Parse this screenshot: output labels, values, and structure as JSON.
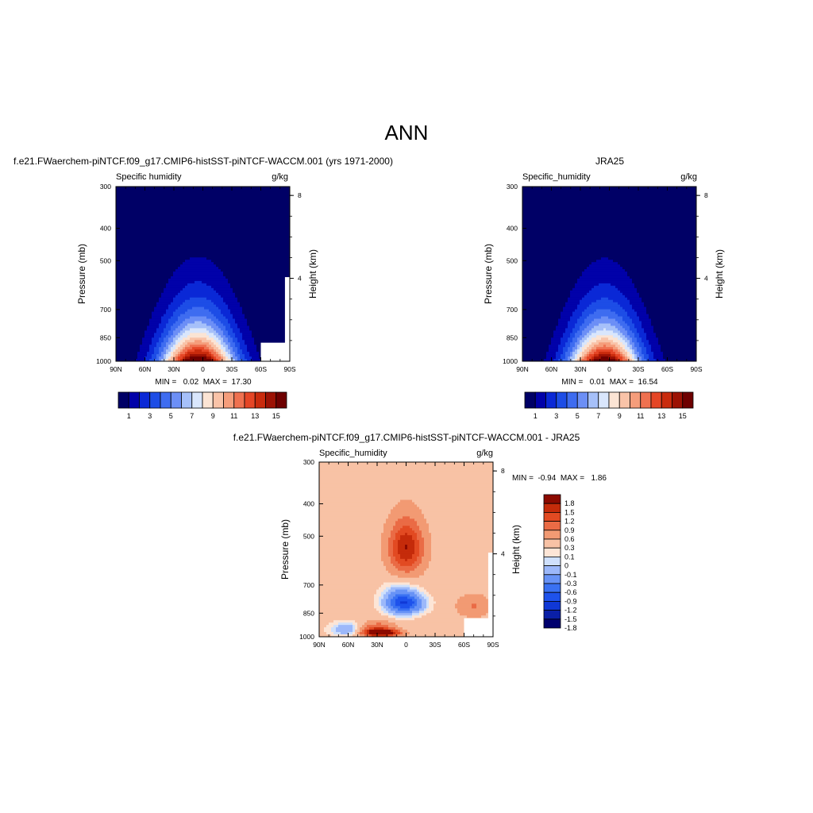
{
  "page_title": "ANN",
  "colors": {
    "abs": [
      "#000066",
      "#0101a9",
      "#0a28d6",
      "#1d4de6",
      "#3e6cf0",
      "#6c8ff6",
      "#a6c0f9",
      "#d9e6fc",
      "#fbe4d4",
      "#f9c3a8",
      "#f59d7b",
      "#ef7150",
      "#e54626",
      "#c92b0d",
      "#9c1204",
      "#6e0000"
    ],
    "diff": [
      "#00006e",
      "#0a1fa6",
      "#1038d6",
      "#1e52ec",
      "#3a71f2",
      "#6893f6",
      "#9cb8fa",
      "#cfe0fc",
      "#fde5d6",
      "#f8c2a5",
      "#f29a73",
      "#ea6b45",
      "#e24a22",
      "#c52b0a",
      "#8c0a00"
    ],
    "diff_default": "#fde5d6"
  },
  "chart_data": [
    {
      "id": "test",
      "type": "heatmap",
      "subplot_title": "f.e21.FWaerchem-piNTCF.f09_g17.CMIP6-histSST-piNTCF-WACCM.001 (yrs 1971-2000)",
      "variable_label": "Specific humidity",
      "units": "g/kg",
      "xlabel": "",
      "ylabel": "Pressure (mb)",
      "ylabel_right": "Height (km)",
      "x_ticks": [
        "90N",
        "60N",
        "30N",
        "0",
        "30S",
        "60S",
        "90S"
      ],
      "x_values": [
        90,
        60,
        30,
        0,
        -30,
        -60,
        -90
      ],
      "y_ticks": [
        "300",
        "400",
        "500",
        "700",
        "850",
        "1000"
      ],
      "y_values": [
        300,
        400,
        500,
        700,
        850,
        1000
      ],
      "height_ticks": [
        "8",
        "4"
      ],
      "height_values": [
        8,
        4
      ],
      "ylim": [
        300,
        1000
      ],
      "xlim": [
        90,
        -90
      ],
      "stats": "MIN =   0.02  MAX =  17.30",
      "min": 0.02,
      "max": 17.3,
      "peak": 17.3,
      "peak_lat": 5,
      "sigma_lat": 26,
      "contour_levels": [
        1,
        2,
        3,
        4,
        5,
        6,
        7,
        8,
        9,
        10,
        11,
        12,
        13,
        14,
        15
      ],
      "colorbar": {
        "orientation": "horizontal",
        "labels": [
          "1",
          "3",
          "5",
          "7",
          "9",
          "11",
          "13",
          "15"
        ]
      }
    },
    {
      "id": "ref",
      "type": "heatmap",
      "subplot_title": "JRA25",
      "variable_label": "Specific_humidity",
      "units": "g/kg",
      "xlabel": "",
      "ylabel": "Pressure (mb)",
      "ylabel_right": "Height (km)",
      "x_ticks": [
        "90N",
        "60N",
        "30N",
        "0",
        "30S",
        "60S",
        "90S"
      ],
      "x_values": [
        90,
        60,
        30,
        0,
        -30,
        -60,
        -90
      ],
      "y_ticks": [
        "300",
        "400",
        "500",
        "700",
        "850",
        "1000"
      ],
      "y_values": [
        300,
        400,
        500,
        700,
        850,
        1000
      ],
      "height_ticks": [
        "8",
        "4"
      ],
      "height_values": [
        8,
        4
      ],
      "ylim": [
        300,
        1000
      ],
      "xlim": [
        90,
        -90
      ],
      "stats": "MIN =   0.01  MAX =  16.54",
      "min": 0.01,
      "max": 16.54,
      "peak": 16.54,
      "peak_lat": 5,
      "sigma_lat": 25,
      "contour_levels": [
        1,
        2,
        3,
        4,
        5,
        6,
        7,
        8,
        9,
        10,
        11,
        12,
        13,
        14,
        15
      ],
      "colorbar": {
        "orientation": "horizontal",
        "labels": [
          "1",
          "3",
          "5",
          "7",
          "9",
          "11",
          "13",
          "15"
        ]
      }
    },
    {
      "id": "diff",
      "type": "heatmap",
      "subplot_title": "f.e21.FWaerchem-piNTCF.f09_g17.CMIP6-histSST-piNTCF-WACCM.001 - JRA25",
      "variable_label": "Specific_humidity",
      "units": "g/kg",
      "xlabel": "",
      "ylabel": "Pressure (mb)",
      "ylabel_right": "Height (km)",
      "x_ticks": [
        "90N",
        "60N",
        "30N",
        "0",
        "30S",
        "60S",
        "90S"
      ],
      "x_values": [
        90,
        60,
        30,
        0,
        -30,
        -60,
        -90
      ],
      "y_ticks": [
        "300",
        "400",
        "500",
        "700",
        "850",
        "1000"
      ],
      "y_values": [
        300,
        400,
        500,
        700,
        850,
        1000
      ],
      "height_ticks": [
        "8",
        "4"
      ],
      "height_values": [
        8,
        4
      ],
      "ylim": [
        300,
        1000
      ],
      "xlim": [
        90,
        -90
      ],
      "stats": "MIN =  -0.94  MAX =   1.86",
      "min": -0.94,
      "max": 1.86,
      "contour_levels": [
        -1.8,
        -1.5,
        -1.2,
        -0.9,
        -0.6,
        -0.3,
        -0.1,
        0,
        0.1,
        0.3,
        0.6,
        0.9,
        1.2,
        1.5,
        1.8
      ],
      "colorbar": {
        "orientation": "vertical",
        "labels": [
          "1.8",
          "1.5",
          "1.2",
          "0.9",
          "0.6",
          "0.3",
          "0.1",
          "0",
          "-0.1",
          "-0.3",
          "-0.6",
          "-0.9",
          "-1.2",
          "-1.5",
          "-1.8"
        ]
      },
      "features": [
        {
          "name": "upper-positive-core",
          "lat": 0,
          "p_low": 440,
          "p_high": 640,
          "level": 0.6
        },
        {
          "name": "upper-positive-ring",
          "lat": 0,
          "p_low": 400,
          "p_high": 690,
          "level": 0.3
        },
        {
          "name": "negative-outer",
          "lat": 5,
          "p_low": 630,
          "p_high": 870,
          "level": -0.1
        },
        {
          "name": "negative-mid",
          "lat": 5,
          "p_low": 690,
          "p_high": 860,
          "level": -0.3
        },
        {
          "name": "negative-core",
          "lat": 0,
          "p_low": 740,
          "p_high": 850,
          "level": -0.6
        },
        {
          "name": "surface-positive-nh",
          "lat": 30,
          "p_low": 900,
          "p_high": 1000,
          "level": 0.6
        },
        {
          "name": "surface-positive-core",
          "lat": 25,
          "p_low": 950,
          "p_high": 1000,
          "level": 1.2
        },
        {
          "name": "south-positive",
          "lat": -70,
          "p_low": 740,
          "p_high": 880,
          "level": 0.3
        },
        {
          "name": "nh-negative-strip",
          "lat": 60,
          "p_low": 900,
          "p_high": 1000,
          "level": -0.3
        }
      ]
    }
  ]
}
